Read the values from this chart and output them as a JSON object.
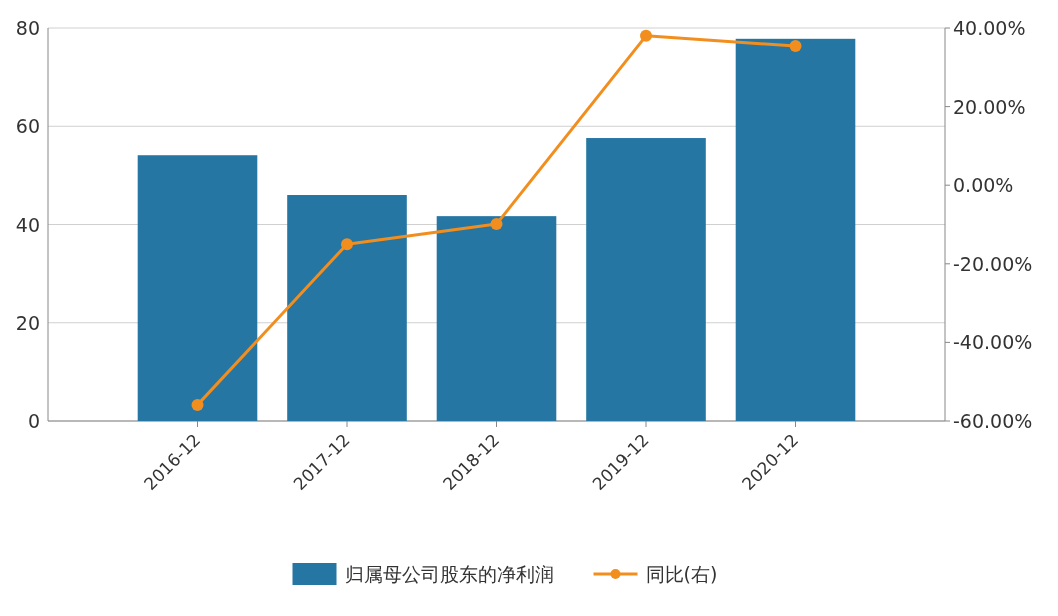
{
  "chart_data": {
    "type": "bar",
    "categories": [
      "2016-12",
      "2017-12",
      "2018-12",
      "2019-12",
      "2020-12"
    ],
    "series": [
      {
        "name": "归属母公司股东的净利润",
        "color": "#2576a3",
        "values": [
          54.1,
          46.0,
          41.7,
          57.6,
          77.8
        ]
      },
      {
        "name": "同比(右)",
        "type": "line",
        "axis": "y2",
        "color": "#f28e1e",
        "marker": "circle",
        "values": [
          -55.9,
          -15.0,
          -9.9,
          38.0,
          35.4
        ]
      }
    ],
    "ylim": [
      0,
      80
    ],
    "yticks": [
      0,
      20,
      40,
      60,
      80
    ],
    "y2lim": [
      -60,
      40
    ],
    "y2ticks": [
      {
        "value": -60,
        "label": "-60.00%"
      },
      {
        "value": -40,
        "label": "-40.00%"
      },
      {
        "value": -20,
        "label": "-20.00%"
      },
      {
        "value": 0,
        "label": "0.00%"
      },
      {
        "value": 20,
        "label": "20.00%"
      },
      {
        "value": 40,
        "label": "40.00%"
      }
    ],
    "grid": "y",
    "legend": "bottom"
  }
}
